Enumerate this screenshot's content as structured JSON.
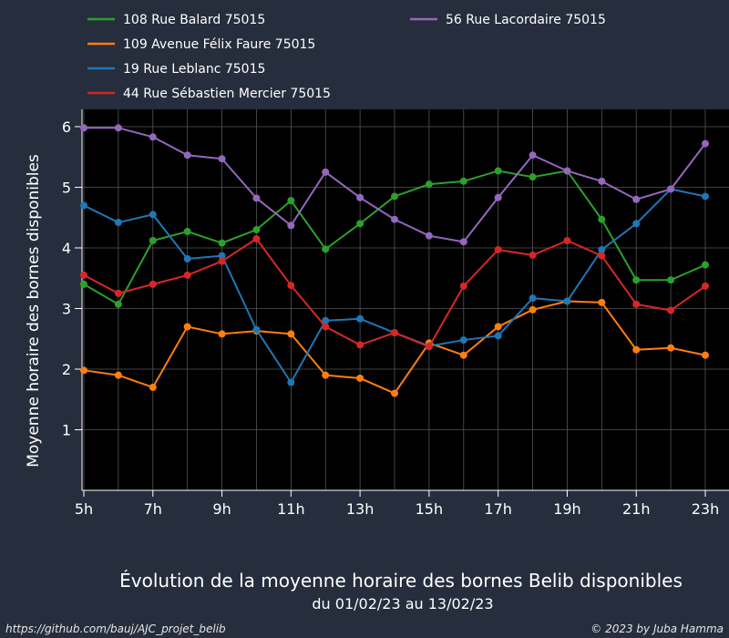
{
  "chart_data": {
    "type": "line",
    "title": "Évolution de la moyenne horaire des bornes Belib disponibles",
    "subtitle": "du 01/02/23 au 13/02/23",
    "xlabel": "",
    "ylabel": "Moyenne horaire des bornes disponibles",
    "x": [
      5,
      6,
      7,
      8,
      9,
      10,
      11,
      12,
      13,
      14,
      15,
      16,
      17,
      18,
      19,
      20,
      21,
      22,
      23
    ],
    "x_ticks": [
      5,
      7,
      9,
      11,
      13,
      15,
      17,
      19,
      21,
      23
    ],
    "x_tick_labels": [
      "5h",
      "7h",
      "9h",
      "11h",
      "13h",
      "15h",
      "17h",
      "19h",
      "21h",
      "23h"
    ],
    "y_ticks": [
      1,
      2,
      3,
      4,
      5,
      6
    ],
    "y_tick_labels": [
      "1",
      "2",
      "3",
      "4",
      "5",
      "6"
    ],
    "xlim": [
      5,
      23
    ],
    "ylim": [
      0,
      6.15
    ],
    "grid": true,
    "legend_position": "top",
    "series": [
      {
        "name": "108 Rue Balard 75015",
        "color": "#2ca02c",
        "values": [
          3.4,
          3.07,
          4.12,
          4.27,
          4.08,
          4.3,
          4.78,
          3.98,
          4.4,
          4.85,
          5.05,
          5.1,
          5.27,
          5.17,
          5.27,
          4.47,
          3.47,
          3.47,
          3.72
        ]
      },
      {
        "name": "109 Avenue Félix Faure 75015",
        "color": "#ff7f0e",
        "values": [
          1.98,
          1.9,
          1.7,
          2.7,
          2.58,
          2.63,
          2.58,
          1.9,
          1.85,
          1.6,
          2.43,
          2.23,
          2.7,
          2.98,
          3.12,
          3.1,
          2.32,
          2.35,
          2.23
        ]
      },
      {
        "name": "19 Rue Leblanc 75015",
        "color": "#1f77b4",
        "values": [
          4.7,
          4.42,
          4.55,
          3.82,
          3.87,
          2.65,
          1.78,
          2.8,
          2.83,
          2.6,
          2.38,
          2.48,
          2.55,
          3.17,
          3.12,
          3.97,
          4.4,
          4.97,
          4.85
        ]
      },
      {
        "name": "44 Rue Sébastien Mercier 75015",
        "color": "#d62728",
        "values": [
          3.55,
          3.25,
          3.4,
          3.55,
          3.78,
          4.15,
          3.38,
          2.7,
          2.4,
          2.6,
          2.37,
          3.37,
          3.97,
          3.88,
          4.12,
          3.87,
          3.07,
          2.97,
          3.37
        ]
      },
      {
        "name": "56 Rue Lacordaire 75015",
        "color": "#9467bd",
        "values": [
          5.98,
          5.98,
          5.83,
          5.53,
          5.47,
          4.82,
          4.37,
          5.25,
          4.83,
          4.47,
          4.2,
          4.1,
          4.83,
          5.53,
          5.27,
          5.1,
          4.8,
          4.97,
          5.72
        ]
      }
    ]
  },
  "footer": {
    "source": "https://github.com/bauj/AJC_projet_belib",
    "credit": "© 2023 by Juba Hamma"
  },
  "colors": {
    "page_background": "#262d3c",
    "plot_background": "#000000",
    "grid": "#555555",
    "text": "#ffffff"
  }
}
